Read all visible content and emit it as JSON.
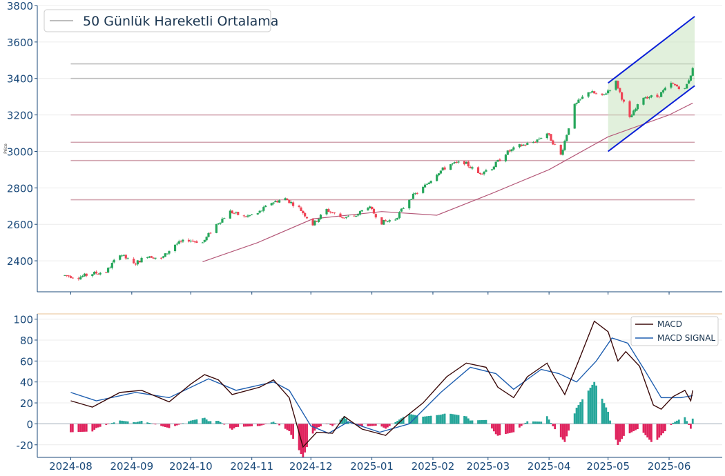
{
  "colors": {
    "up": "#26a65b",
    "down": "#ef4456",
    "ma": "#b55a7a",
    "macd": "#3b0a0a",
    "signal": "#1f5fb0",
    "hist_pos": "#26a69a",
    "hist_neg": "#e0245e",
    "channel_line": "#0a1fd8",
    "channel_fill": "#c9e4c0",
    "hline_grey": "#bdbdbd",
    "hline_pink": "#d2a5b0",
    "axis": "#1b4a7a",
    "top_border": "#e8c090"
  },
  "chart_data": [
    {
      "type": "candlestick",
      "ylabel": "Price",
      "ylim": [
        2230,
        3800
      ],
      "yticks": [
        2400,
        2600,
        2800,
        3000,
        3200,
        3400,
        3600,
        3800
      ],
      "legend": {
        "entry": "50 Günlük Hareketli Ortalama",
        "placement": "top-left"
      },
      "horizontal_levels": [
        3480,
        3400,
        3200,
        3050,
        2950,
        2735
      ],
      "ohlc_control_points": [
        [
          "2024-07-29",
          2320
        ],
        [
          "2024-08-05",
          2310
        ],
        [
          "2024-08-12",
          2330
        ],
        [
          "2024-08-19",
          2340
        ],
        [
          "2024-08-26",
          2440
        ],
        [
          "2024-09-02",
          2380
        ],
        [
          "2024-09-09",
          2430
        ],
        [
          "2024-09-16",
          2410
        ],
        [
          "2024-09-23",
          2490
        ],
        [
          "2024-09-30",
          2515
        ],
        [
          "2024-10-07",
          2500
        ],
        [
          "2024-10-14",
          2600
        ],
        [
          "2024-10-21",
          2670
        ],
        [
          "2024-10-28",
          2640
        ],
        [
          "2024-11-04",
          2660
        ],
        [
          "2024-11-11",
          2720
        ],
        [
          "2024-11-18",
          2740
        ],
        [
          "2024-11-25",
          2690
        ],
        [
          "2024-12-02",
          2600
        ],
        [
          "2024-12-09",
          2680
        ],
        [
          "2024-12-16",
          2640
        ],
        [
          "2024-12-23",
          2640
        ],
        [
          "2024-12-30",
          2700
        ],
        [
          "2025-01-06",
          2610
        ],
        [
          "2025-01-13",
          2630
        ],
        [
          "2025-01-20",
          2740
        ],
        [
          "2025-01-27",
          2800
        ],
        [
          "2025-02-03",
          2880
        ],
        [
          "2025-02-10",
          2930
        ],
        [
          "2025-02-17",
          2940
        ],
        [
          "2025-02-24",
          2880
        ],
        [
          "2025-03-03",
          2910
        ],
        [
          "2025-03-10",
          2990
        ],
        [
          "2025-03-17",
          3030
        ],
        [
          "2025-03-24",
          3050
        ],
        [
          "2025-03-31",
          3100
        ],
        [
          "2025-04-07",
          2980
        ],
        [
          "2025-04-14",
          3250
        ],
        [
          "2025-04-21",
          3330
        ],
        [
          "2025-04-28",
          3300
        ],
        [
          "2025-05-05",
          3380
        ],
        [
          "2025-05-12",
          3180
        ],
        [
          "2025-05-19",
          3300
        ],
        [
          "2025-05-26",
          3300
        ],
        [
          "2025-06-02",
          3370
        ],
        [
          "2025-06-09",
          3340
        ],
        [
          "2025-06-13",
          3450
        ]
      ],
      "ma50": [
        [
          "2024-10-07",
          2395
        ],
        [
          "2024-11-04",
          2500
        ],
        [
          "2024-12-02",
          2630
        ],
        [
          "2025-01-06",
          2670
        ],
        [
          "2025-02-03",
          2650
        ],
        [
          "2025-03-03",
          2770
        ],
        [
          "2025-04-01",
          2900
        ],
        [
          "2025-05-01",
          3080
        ],
        [
          "2025-06-01",
          3200
        ],
        [
          "2025-06-13",
          3265
        ]
      ],
      "channel": {
        "upper": [
          [
            "2025-05-01",
            3375
          ],
          [
            "2025-06-14",
            3740
          ]
        ],
        "lower": [
          [
            "2025-05-01",
            3000
          ],
          [
            "2025-06-14",
            3360
          ]
        ]
      }
    },
    {
      "type": "line",
      "ylim": [
        -32,
        105
      ],
      "yticks": [
        -20,
        0,
        20,
        40,
        60,
        80,
        100
      ],
      "legend": {
        "entries": [
          "MACD",
          "MACD SIGNAL"
        ],
        "placement": "top-right"
      },
      "x_ticklabels": [
        "2024-08",
        "2024-09",
        "2024-10",
        "2024-11",
        "2024-12",
        "2025-01",
        "2025-02",
        "2025-03",
        "2025-04",
        "2025-05",
        "2025-06"
      ],
      "series": [
        {
          "name": "MACD",
          "points": [
            [
              "2024-08-01",
              22
            ],
            [
              "2024-08-12",
              16
            ],
            [
              "2024-08-26",
              30
            ],
            [
              "2024-09-06",
              32
            ],
            [
              "2024-09-20",
              21
            ],
            [
              "2024-10-01",
              38
            ],
            [
              "2024-10-08",
              47
            ],
            [
              "2024-10-15",
              42
            ],
            [
              "2024-10-22",
              28
            ],
            [
              "2024-11-05",
              35
            ],
            [
              "2024-11-12",
              42
            ],
            [
              "2024-11-20",
              25
            ],
            [
              "2024-11-27",
              -22
            ],
            [
              "2024-12-04",
              -8
            ],
            [
              "2024-12-12",
              -9
            ],
            [
              "2024-12-18",
              7
            ],
            [
              "2024-12-27",
              -5
            ],
            [
              "2025-01-08",
              -11
            ],
            [
              "2025-01-17",
              5
            ],
            [
              "2025-01-27",
              20
            ],
            [
              "2025-02-08",
              45
            ],
            [
              "2025-02-18",
              58
            ],
            [
              "2025-02-28",
              54
            ],
            [
              "2025-03-06",
              35
            ],
            [
              "2025-03-14",
              25
            ],
            [
              "2025-03-21",
              45
            ],
            [
              "2025-03-31",
              58
            ],
            [
              "2025-04-03",
              47
            ],
            [
              "2025-04-09",
              28
            ],
            [
              "2025-04-16",
              60
            ],
            [
              "2025-04-24",
              98
            ],
            [
              "2025-05-01",
              88
            ],
            [
              "2025-05-06",
              60
            ],
            [
              "2025-05-10",
              69
            ],
            [
              "2025-05-17",
              55
            ],
            [
              "2025-05-24",
              18
            ],
            [
              "2025-05-28",
              14
            ],
            [
              "2025-06-03",
              26
            ],
            [
              "2025-06-09",
              32
            ],
            [
              "2025-06-12",
              22
            ],
            [
              "2025-06-13",
              32
            ]
          ]
        },
        {
          "name": "MACD SIGNAL",
          "points": [
            [
              "2024-08-01",
              30
            ],
            [
              "2024-08-14",
              22
            ],
            [
              "2024-09-03",
              30
            ],
            [
              "2024-09-20",
              25
            ],
            [
              "2024-10-10",
              43
            ],
            [
              "2024-10-24",
              32
            ],
            [
              "2024-11-12",
              40
            ],
            [
              "2024-11-20",
              32
            ],
            [
              "2024-12-01",
              -2
            ],
            [
              "2024-12-10",
              -9
            ],
            [
              "2024-12-20",
              2
            ],
            [
              "2025-01-05",
              -8
            ],
            [
              "2025-01-20",
              0
            ],
            [
              "2025-02-05",
              30
            ],
            [
              "2025-02-20",
              54
            ],
            [
              "2025-03-05",
              48
            ],
            [
              "2025-03-14",
              33
            ],
            [
              "2025-03-28",
              52
            ],
            [
              "2025-04-06",
              48
            ],
            [
              "2025-04-15",
              40
            ],
            [
              "2025-04-25",
              60
            ],
            [
              "2025-05-03",
              82
            ],
            [
              "2025-05-11",
              77
            ],
            [
              "2025-05-20",
              50
            ],
            [
              "2025-05-28",
              25
            ],
            [
              "2025-06-07",
              25
            ],
            [
              "2025-06-13",
              27
            ]
          ]
        }
      ],
      "histogram": "MACD minus MACD SIGNAL"
    }
  ]
}
